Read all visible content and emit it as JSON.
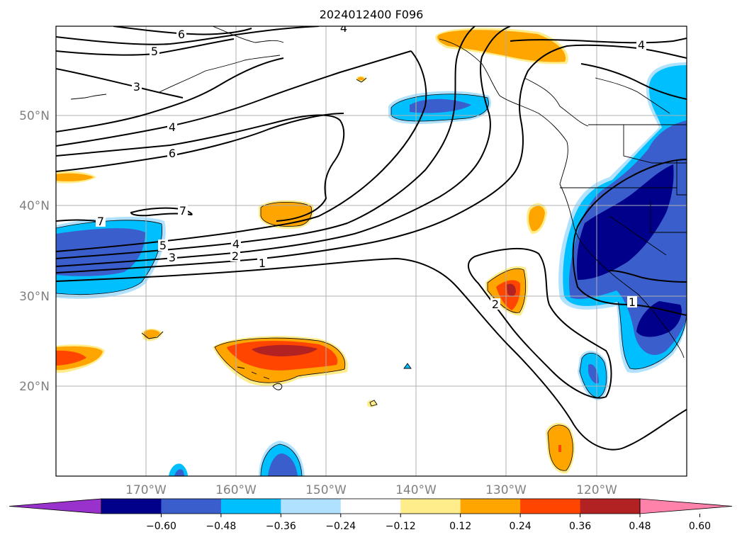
{
  "title": "2024012400 F096",
  "lat_labels": [
    "50°N",
    "40°N",
    "30°N",
    "20°N"
  ],
  "lon_labels": [
    "170°W",
    "160°W",
    "150°W",
    "140°W",
    "130°W",
    "120°W"
  ],
  "colorbar": {
    "ticks": [
      "−0.60",
      "−0.48",
      "−0.36",
      "−0.24",
      "−0.12",
      "0.12",
      "0.24",
      "0.36",
      "0.48",
      "0.60"
    ],
    "colors": [
      "#9932cc",
      "#00008b",
      "#3a5fcd",
      "#00bfff",
      "#b0e2ff",
      "#ffffff",
      "#ffec8b",
      "#ffa500",
      "#ff4500",
      "#b22222",
      "#ff82ab"
    ]
  },
  "contour_labels": {
    "c6a": "6",
    "c4a": "4",
    "c5a": "5",
    "c4b": "4",
    "c3a": "3",
    "c4c": "4",
    "c6b": "6",
    "c7a": "7",
    "c7b": "7",
    "c5b": "5",
    "c4d": "4",
    "c3b": "3",
    "c2a": "2",
    "c1a": "1",
    "c2b": "2",
    "c1b": "1"
  },
  "shading_colors": {
    "neg1": "#b0e2ff",
    "neg2": "#00bfff",
    "neg3": "#3a5fcd",
    "neg4": "#00008b",
    "pos1": "#ffec8b",
    "pos2": "#ffa500",
    "pos3": "#ff4500",
    "pos4": "#b22222"
  }
}
